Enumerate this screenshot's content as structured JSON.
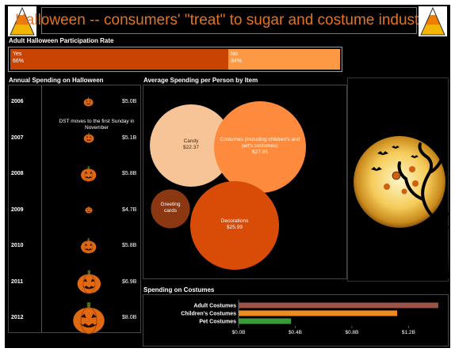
{
  "header": {
    "title": "Halloween -- consumers' \"treat\" to sugar and costume industries"
  },
  "participation": {
    "title": "Adult Halloween Participation Rate",
    "segments": [
      {
        "label": "Yes",
        "value_label": "66%",
        "value": 66,
        "color": "#c94402"
      },
      {
        "label": "No",
        "value_label": "34%",
        "value": 34,
        "color": "#fd9944"
      }
    ]
  },
  "annual": {
    "title": "Annual Spending on Halloween",
    "annotation": "DST moves to the first Sunday in November"
  },
  "bubbles": {
    "title": "Average Spending per Person by Item"
  },
  "costumes": {
    "title": "Spending on Costumes"
  },
  "colors": {
    "accent": "#e5731f",
    "pumpkin": "#e06a12",
    "background": "#000000"
  },
  "icons": {
    "corner": "candy-corn-icon",
    "moon": "moon-bats-icon",
    "pumpkin": "jack-o-lantern-icon"
  },
  "chart_data": [
    {
      "type": "bar",
      "name": "annual-spending",
      "categories": [
        "2006",
        "2007",
        "2008",
        "2009",
        "2010",
        "2011",
        "2012"
      ],
      "values": [
        5.0,
        5.1,
        5.8,
        4.7,
        5.8,
        6.9,
        8.0
      ],
      "value_labels": [
        "$5.0B",
        "$5.1B",
        "$5.8B",
        "$4.7B",
        "$5.8B",
        "$6.9B",
        "$8.0B"
      ],
      "unit": "B USD"
    },
    {
      "type": "scatter",
      "name": "average-spending-bubbles",
      "items": [
        {
          "label": "Candy",
          "value_label": "$22.37",
          "value": 22.37,
          "color": "#f6c496"
        },
        {
          "label": "Costumes (including children's and pet's costumes)",
          "value_label": "$27.85",
          "value": 27.85,
          "color": "#fd8a3d"
        },
        {
          "label": "Greeting cards",
          "value_label": "",
          "value": 5.0,
          "color": "#8a3712"
        },
        {
          "label": "Decorations",
          "value_label": "$25.99",
          "value": 25.99,
          "color": "#d94c08"
        }
      ]
    },
    {
      "type": "bar",
      "name": "costume-spending",
      "orientation": "horizontal",
      "categories": [
        "Adult Costumes",
        "Children's Costumes",
        "Pet Costumes"
      ],
      "values": [
        1.41,
        1.12,
        0.37
      ],
      "colors": [
        "#9c5448",
        "#ef8a1e",
        "#3b9b37"
      ],
      "xticks": [
        "$0.0B",
        "$0.4B",
        "$0.8B",
        "$1.2B"
      ],
      "xtick_values": [
        0,
        0.4,
        0.8,
        1.2
      ],
      "xlim": [
        0,
        1.45
      ]
    }
  ]
}
